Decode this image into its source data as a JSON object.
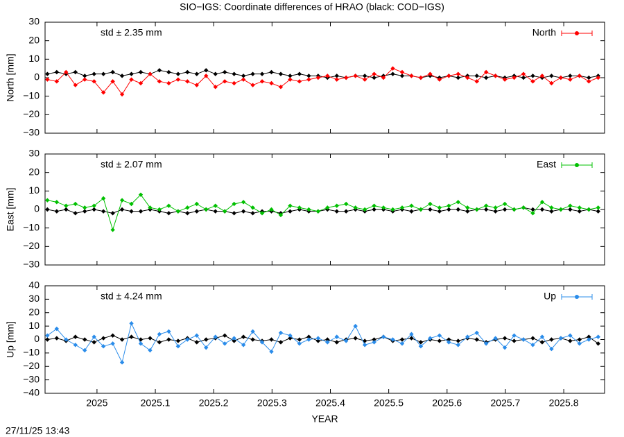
{
  "title": "SIO−IGS: Coordinate differences of HRAO (black: COD−IGS)",
  "timestamp": "27/11/25 13:43",
  "chart_data": [
    {
      "type": "line",
      "ylabel": "North [mm]",
      "annotation": "std ± 2.35 mm",
      "legend": "top-right",
      "grid": false,
      "xlim": [
        2024.911,
        2025.87
      ],
      "xticks": [
        2025,
        2025.1,
        2025.2,
        2025.3,
        2025.4,
        2025.5,
        2025.6,
        2025.7,
        2025.8
      ],
      "ylim": [
        -30,
        30
      ],
      "yticks": [
        {
          "value": -30,
          "label": "−30"
        },
        {
          "value": -20,
          "label": "−20"
        },
        {
          "value": -10,
          "label": "−10"
        },
        0,
        10,
        20,
        30
      ],
      "x": [
        2024.915,
        2024.931,
        2024.947,
        2024.963,
        2024.979,
        2024.995,
        2025.011,
        2025.027,
        2025.043,
        2025.059,
        2025.075,
        2025.091,
        2025.107,
        2025.123,
        2025.139,
        2025.155,
        2025.171,
        2025.187,
        2025.203,
        2025.219,
        2025.235,
        2025.251,
        2025.267,
        2025.283,
        2025.299,
        2025.315,
        2025.331,
        2025.347,
        2025.363,
        2025.379,
        2025.395,
        2025.411,
        2025.427,
        2025.443,
        2025.459,
        2025.475,
        2025.491,
        2025.507,
        2025.523,
        2025.539,
        2025.555,
        2025.571,
        2025.587,
        2025.603,
        2025.619,
        2025.635,
        2025.651,
        2025.667,
        2025.683,
        2025.699,
        2025.715,
        2025.731,
        2025.747,
        2025.763,
        2025.779,
        2025.795,
        2025.811,
        2025.827,
        2025.843,
        2025.859
      ],
      "series": [
        {
          "color": "#000000",
          "values": [
            2,
            3,
            2,
            3,
            1,
            2,
            2,
            3,
            1,
            2,
            3,
            2,
            4,
            3,
            2,
            3,
            2,
            4,
            2,
            3,
            2,
            1,
            2,
            2,
            3,
            2,
            1,
            2,
            1,
            1,
            0,
            1,
            0,
            1,
            1,
            0,
            1,
            2,
            1,
            1,
            0,
            1,
            0,
            1,
            0,
            1,
            1,
            0,
            1,
            0,
            1,
            0,
            1,
            0,
            1,
            0,
            1,
            1,
            0,
            1
          ]
        },
        {
          "name": "North",
          "color": "#ff0000",
          "values": [
            -1,
            -2,
            3,
            -4,
            -1,
            -2,
            -8,
            -2,
            -9,
            -1,
            -3,
            2,
            -2,
            -3,
            -1,
            -2,
            -4,
            1,
            -5,
            -2,
            -3,
            -1,
            -4,
            -2,
            -3,
            -5,
            -1,
            -2,
            -1,
            0,
            1,
            -1,
            0,
            1,
            -1,
            2,
            0,
            5,
            3,
            1,
            0,
            2,
            -1,
            1,
            2,
            0,
            -2,
            3,
            1,
            -1,
            0,
            2,
            -2,
            1,
            -3,
            0,
            -1,
            1,
            -2,
            0
          ]
        }
      ]
    },
    {
      "type": "line",
      "ylabel": "East [mm]",
      "annotation": "std ± 2.07 mm",
      "legend": "top-right",
      "grid": false,
      "xlim": [
        2024.911,
        2025.87
      ],
      "xticks": [
        2025,
        2025.1,
        2025.2,
        2025.3,
        2025.4,
        2025.5,
        2025.6,
        2025.7,
        2025.8
      ],
      "ylim": [
        -30,
        30
      ],
      "yticks": [
        {
          "value": -30,
          "label": "−30"
        },
        {
          "value": -20,
          "label": "−20"
        },
        {
          "value": -10,
          "label": "−10"
        },
        0,
        10,
        20,
        30
      ],
      "x": [
        2024.915,
        2024.931,
        2024.947,
        2024.963,
        2024.979,
        2024.995,
        2025.011,
        2025.027,
        2025.043,
        2025.059,
        2025.075,
        2025.091,
        2025.107,
        2025.123,
        2025.139,
        2025.155,
        2025.171,
        2025.187,
        2025.203,
        2025.219,
        2025.235,
        2025.251,
        2025.267,
        2025.283,
        2025.299,
        2025.315,
        2025.331,
        2025.347,
        2025.363,
        2025.379,
        2025.395,
        2025.411,
        2025.427,
        2025.443,
        2025.459,
        2025.475,
        2025.491,
        2025.507,
        2025.523,
        2025.539,
        2025.555,
        2025.571,
        2025.587,
        2025.603,
        2025.619,
        2025.635,
        2025.651,
        2025.667,
        2025.683,
        2025.699,
        2025.715,
        2025.731,
        2025.747,
        2025.763,
        2025.779,
        2025.795,
        2025.811,
        2025.827,
        2025.843,
        2025.859
      ],
      "series": [
        {
          "color": "#000000",
          "values": [
            0,
            -1,
            0,
            -2,
            -1,
            0,
            -1,
            -2,
            0,
            -1,
            -1,
            0,
            -1,
            -2,
            -1,
            -2,
            -1,
            0,
            -1,
            -1,
            -2,
            -1,
            -2,
            -1,
            -1,
            -2,
            -1,
            0,
            -1,
            -1,
            0,
            -1,
            -1,
            0,
            -1,
            0,
            0,
            -1,
            0,
            -1,
            0,
            0,
            -1,
            0,
            0,
            -1,
            0,
            0,
            -1,
            0,
            0,
            1,
            0,
            0,
            -1,
            0,
            0,
            -1,
            0,
            -1
          ]
        },
        {
          "name": "East",
          "color": "#00c000",
          "values": [
            5,
            4,
            2,
            3,
            1,
            2,
            6,
            -11,
            5,
            3,
            8,
            1,
            0,
            2,
            -1,
            1,
            3,
            0,
            2,
            -1,
            3,
            4,
            1,
            -2,
            0,
            -3,
            2,
            1,
            0,
            -1,
            1,
            2,
            3,
            1,
            0,
            2,
            1,
            0,
            1,
            2,
            0,
            3,
            1,
            2,
            4,
            1,
            0,
            2,
            1,
            3,
            0,
            1,
            -2,
            4,
            1,
            0,
            2,
            1,
            0,
            1
          ]
        }
      ]
    },
    {
      "type": "line",
      "ylabel": "Up [mm]",
      "xlabel": "YEAR",
      "annotation": "std ± 4.24 mm",
      "legend": "top-right",
      "grid": false,
      "xlim": [
        2024.911,
        2025.87
      ],
      "xticks": [
        2025,
        2025.1,
        2025.2,
        2025.3,
        2025.4,
        2025.5,
        2025.6,
        2025.7,
        2025.8
      ],
      "ylim": [
        -40,
        40
      ],
      "yticks": [
        {
          "value": -40,
          "label": "−40"
        },
        {
          "value": -30,
          "label": "−30"
        },
        {
          "value": -20,
          "label": "−20"
        },
        {
          "value": -10,
          "label": "−10"
        },
        0,
        10,
        20,
        30,
        40
      ],
      "x": [
        2024.915,
        2024.931,
        2024.947,
        2024.963,
        2024.979,
        2024.995,
        2025.011,
        2025.027,
        2025.043,
        2025.059,
        2025.075,
        2025.091,
        2025.107,
        2025.123,
        2025.139,
        2025.155,
        2025.171,
        2025.187,
        2025.203,
        2025.219,
        2025.235,
        2025.251,
        2025.267,
        2025.283,
        2025.299,
        2025.315,
        2025.331,
        2025.347,
        2025.363,
        2025.379,
        2025.395,
        2025.411,
        2025.427,
        2025.443,
        2025.459,
        2025.475,
        2025.491,
        2025.507,
        2025.523,
        2025.539,
        2025.555,
        2025.571,
        2025.587,
        2025.603,
        2025.619,
        2025.635,
        2025.651,
        2025.667,
        2025.683,
        2025.699,
        2025.715,
        2025.731,
        2025.747,
        2025.763,
        2025.779,
        2025.795,
        2025.811,
        2025.827,
        2025.843,
        2025.859
      ],
      "series": [
        {
          "color": "#000000",
          "values": [
            0,
            1,
            -1,
            2,
            0,
            -2,
            1,
            3,
            0,
            2,
            0,
            1,
            -2,
            0,
            -1,
            1,
            -2,
            0,
            1,
            3,
            -1,
            2,
            0,
            -1,
            0,
            -2,
            1,
            0,
            2,
            -1,
            0,
            -2,
            0,
            1,
            -1,
            0,
            2,
            -1,
            0,
            1,
            -2,
            0,
            -1,
            0,
            -1,
            1,
            0,
            -2,
            0,
            1,
            -1,
            0,
            1,
            -2,
            0,
            1,
            -1,
            0,
            2,
            -3
          ]
        },
        {
          "name": "Up",
          "color": "#2a8cea",
          "values": [
            3,
            8,
            0,
            -4,
            -8,
            2,
            -5,
            -3,
            -17,
            12,
            -3,
            -8,
            4,
            6,
            -5,
            0,
            3,
            -6,
            2,
            -3,
            1,
            -4,
            6,
            -2,
            -9,
            5,
            3,
            -3,
            0,
            1,
            -2,
            2,
            -1,
            10,
            -4,
            -2,
            2,
            0,
            -3,
            4,
            -5,
            1,
            3,
            -2,
            -4,
            2,
            5,
            -3,
            1,
            -6,
            3,
            0,
            -4,
            2,
            -7,
            1,
            3,
            -3,
            0,
            2
          ]
        }
      ]
    }
  ]
}
